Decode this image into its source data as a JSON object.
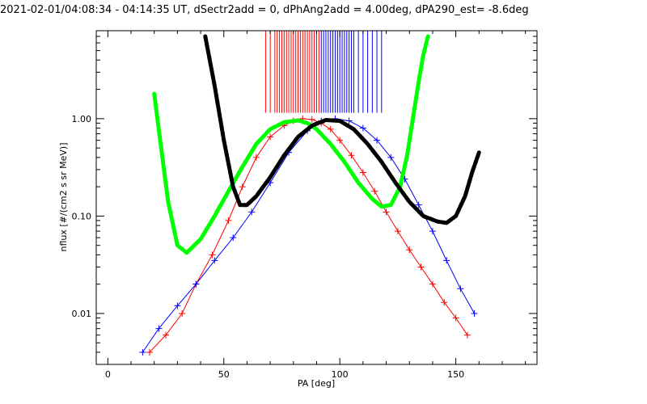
{
  "chart_data": {
    "type": "line",
    "title": "2021-02-01/04:08:34 - 04:14:35 UT, dSectr2add = 0, dPhAng2add = 4.00deg, dPA290_est=  -8.6deg",
    "xlabel": "PA [deg]",
    "ylabel": "nflux [#/(cm2 s sr MeV)]",
    "xlim": [
      -5,
      185
    ],
    "ylim": [
      0.003,
      8
    ],
    "yscale": "log",
    "xticks": [
      0,
      50,
      100,
      150
    ],
    "xtick_labels": [
      "0",
      "50",
      "100",
      "150"
    ],
    "yticks": [
      0.01,
      0.1,
      1.0
    ],
    "ytick_labels": [
      "0.01",
      "0.10",
      "1.00"
    ],
    "grid": false,
    "legend": "none",
    "colors": {
      "red_series": "#ff0000",
      "blue_series": "#0000ff",
      "green_fit": "#00ff00",
      "black_fit": "#000000",
      "background": "#ffffff",
      "axis": "#000000"
    },
    "series": [
      {
        "color": "red",
        "style": "line+plus",
        "x": [
          18,
          25,
          32,
          38,
          45,
          52,
          58,
          64,
          70,
          76,
          80,
          84,
          88,
          92,
          96,
          100,
          105,
          110,
          115,
          120,
          125,
          130,
          135,
          140,
          145,
          150,
          155
        ],
        "y": [
          0.004,
          0.006,
          0.01,
          0.02,
          0.04,
          0.09,
          0.2,
          0.4,
          0.65,
          0.85,
          0.95,
          1.0,
          0.98,
          0.9,
          0.78,
          0.6,
          0.42,
          0.28,
          0.18,
          0.11,
          0.07,
          0.045,
          0.03,
          0.02,
          0.013,
          0.009,
          0.006
        ]
      },
      {
        "color": "blue",
        "style": "line+plus",
        "x": [
          15,
          22,
          30,
          38,
          46,
          54,
          62,
          70,
          78,
          86,
          92,
          98,
          104,
          110,
          116,
          122,
          128,
          134,
          140,
          146,
          152,
          158
        ],
        "y": [
          0.004,
          0.007,
          0.012,
          0.02,
          0.035,
          0.06,
          0.11,
          0.22,
          0.45,
          0.75,
          0.95,
          1.0,
          0.95,
          0.8,
          0.6,
          0.4,
          0.24,
          0.13,
          0.07,
          0.035,
          0.018,
          0.01
        ]
      }
    ],
    "fit_curves": [
      {
        "color": "green",
        "style": "thick-dashed",
        "x": [
          20,
          23,
          26,
          30,
          34,
          40,
          46,
          52,
          58,
          64,
          70,
          76,
          82,
          86,
          90,
          96,
          102,
          108,
          114,
          118,
          122,
          126,
          129,
          132,
          134,
          136,
          138
        ],
        "y": [
          1.8,
          0.5,
          0.14,
          0.05,
          0.042,
          0.058,
          0.1,
          0.18,
          0.32,
          0.55,
          0.78,
          0.92,
          0.96,
          0.9,
          0.78,
          0.55,
          0.36,
          0.22,
          0.15,
          0.125,
          0.13,
          0.2,
          0.42,
          1.2,
          2.4,
          4.5,
          7.0
        ]
      },
      {
        "color": "black",
        "style": "thick-dashed",
        "x": [
          42,
          46,
          50,
          54,
          57,
          60,
          64,
          70,
          76,
          82,
          88,
          94,
          100,
          106,
          112,
          118,
          124,
          130,
          136,
          142,
          146,
          150,
          154,
          157,
          160
        ],
        "y": [
          7.0,
          2.2,
          0.6,
          0.2,
          0.13,
          0.13,
          0.16,
          0.25,
          0.42,
          0.65,
          0.85,
          0.97,
          0.95,
          0.78,
          0.55,
          0.36,
          0.22,
          0.14,
          0.1,
          0.088,
          0.085,
          0.1,
          0.16,
          0.28,
          0.45
        ]
      }
    ],
    "rug_marks": {
      "y_low": 1.15,
      "red_x": [
        68,
        70,
        72,
        73,
        74,
        75,
        76,
        77,
        78,
        79,
        80,
        81,
        82,
        83,
        84,
        85,
        86,
        87,
        88,
        89,
        90,
        91
      ],
      "blue_x": [
        92,
        93,
        94,
        95,
        96,
        97,
        98,
        99,
        100,
        101,
        102,
        103,
        104,
        105,
        106,
        108,
        110,
        112,
        114,
        116,
        118
      ]
    }
  }
}
